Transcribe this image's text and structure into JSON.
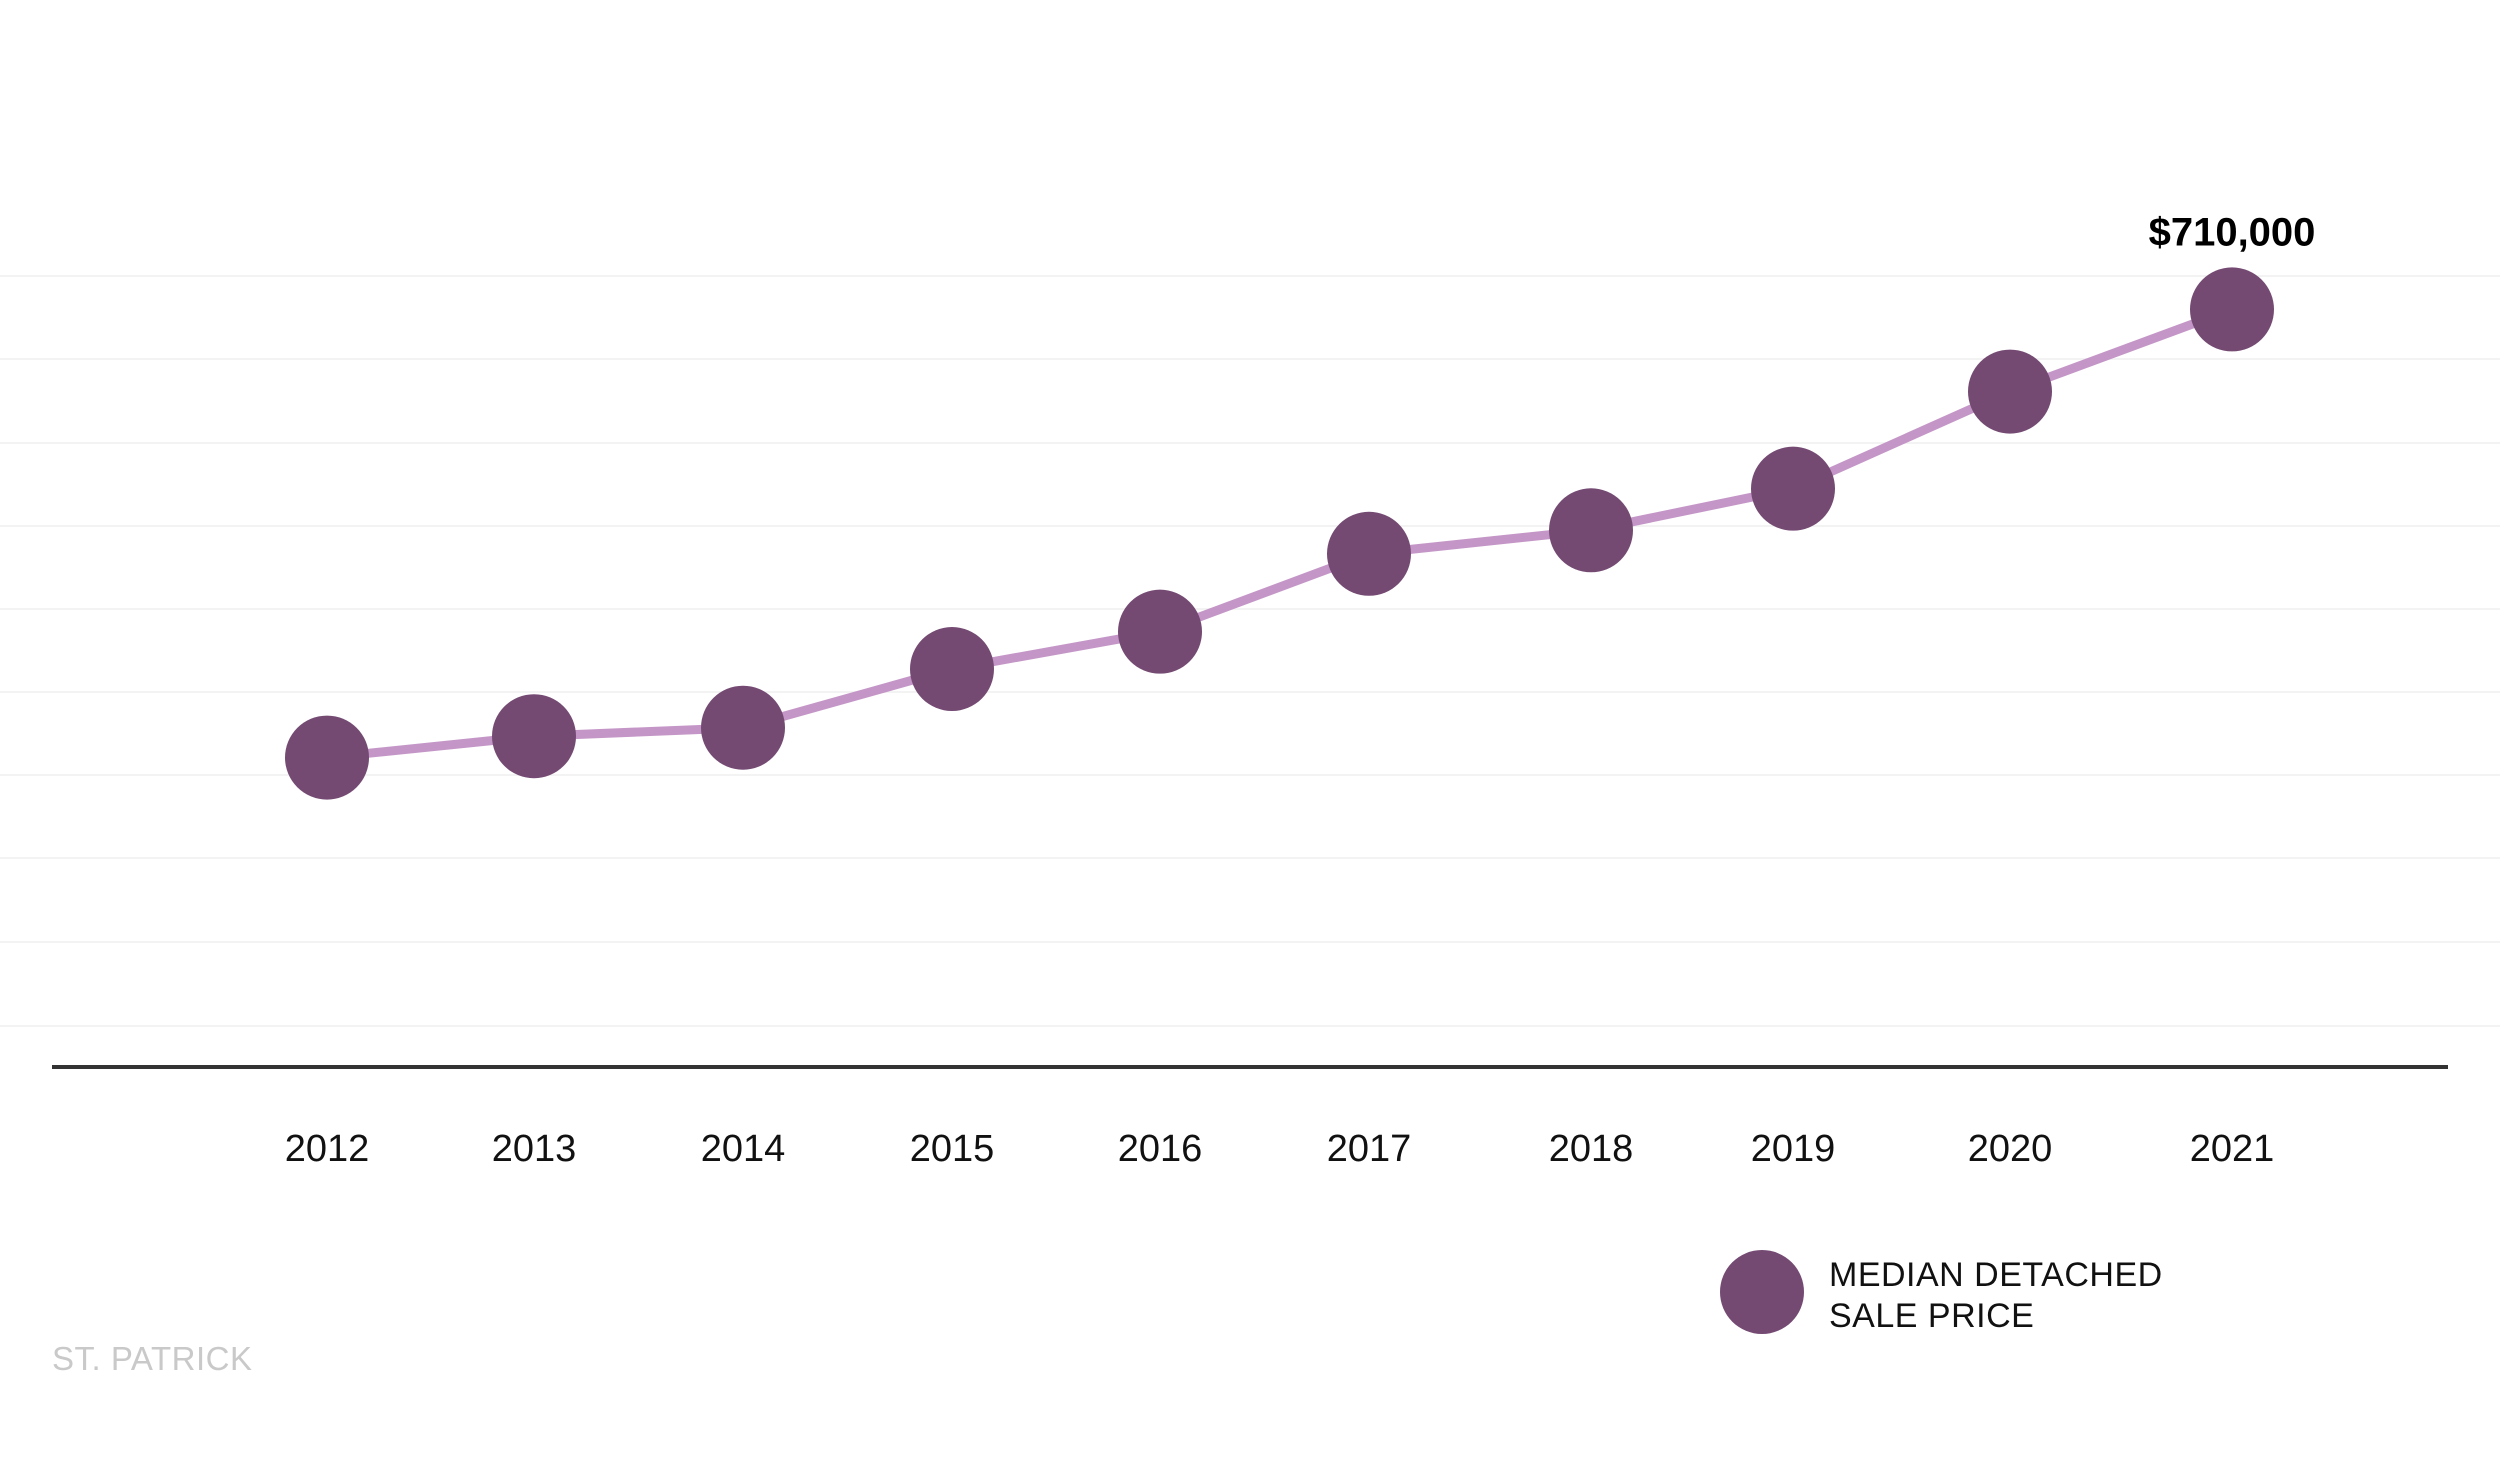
{
  "colors": {
    "marker": "#744a73",
    "line": "#c496c7",
    "axis": "#333333",
    "grid": "#f3f3f3",
    "footer": "#c9c9c9"
  },
  "footer": {
    "label": "ST. PATRICK"
  },
  "legend": {
    "position": "bottom-right",
    "line1": "MEDIAN DETACHED",
    "line2": "SALE PRICE"
  },
  "chart_data": {
    "type": "line",
    "x": [
      "2012",
      "2013",
      "2014",
      "2015",
      "2016",
      "2017",
      "2018",
      "2019",
      "2020",
      "2021"
    ],
    "series": [
      {
        "name": "MEDIAN DETACHED SALE PRICE",
        "values": [
          290000,
          310000,
          318000,
          373000,
          408000,
          481000,
          503000,
          542000,
          633000,
          710000
        ]
      }
    ],
    "annotations": [
      {
        "x": "2021",
        "text": "$710,000"
      }
    ],
    "xlabel": "",
    "ylabel": "",
    "ylim": [
      0,
      1000000
    ],
    "grid": true
  }
}
